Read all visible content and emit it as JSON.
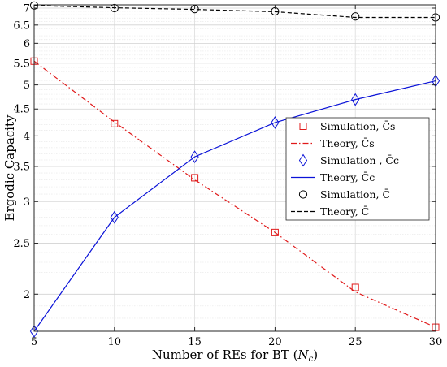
{
  "chart_data": {
    "type": "line",
    "xlabel": "Number of REs for BT (N_c)",
    "ylabel": "Ergodic Capacity",
    "x_scale": "linear",
    "y_scale": "log",
    "xlim": [
      5,
      30
    ],
    "ylim": [
      1.7,
      7.1
    ],
    "grid": true,
    "x_ticks": [
      5,
      10,
      15,
      20,
      25,
      30
    ],
    "y_ticks": [
      2,
      2.5,
      3,
      3.5,
      4,
      4.5,
      5,
      5.5,
      6,
      6.5,
      7
    ],
    "legend_position": "center-right",
    "x": [
      5,
      10,
      15,
      20,
      25,
      30
    ],
    "series": [
      {
        "name": "Simulation, C̄s",
        "marker": "square",
        "color": "#e0191a",
        "values": [
          5.55,
          4.22,
          3.33,
          2.62,
          2.06,
          1.73
        ]
      },
      {
        "name": "Theory, C̄s",
        "line": "dashdot",
        "color": "#e0191a",
        "values": [
          5.55,
          4.25,
          3.3,
          2.62,
          2.02,
          1.73
        ]
      },
      {
        "name": "Simulation , C̄c",
        "marker": "diamond",
        "color": "#0b13d8",
        "values": [
          1.7,
          2.8,
          3.65,
          4.24,
          4.69,
          5.09
        ]
      },
      {
        "name": "Theory, C̄c",
        "line": "solid",
        "color": "#0b13d8",
        "values": [
          1.7,
          2.8,
          3.65,
          4.24,
          4.69,
          5.09
        ]
      },
      {
        "name": "Simulation, C̄",
        "marker": "circle",
        "color": "#000000",
        "values": [
          7.08,
          7.0,
          6.97,
          6.9,
          6.75,
          6.72
        ]
      },
      {
        "name": "Theory, C̄",
        "line": "dashed",
        "color": "#000000",
        "values": [
          7.08,
          7.01,
          6.96,
          6.89,
          6.72,
          6.72
        ]
      }
    ]
  }
}
